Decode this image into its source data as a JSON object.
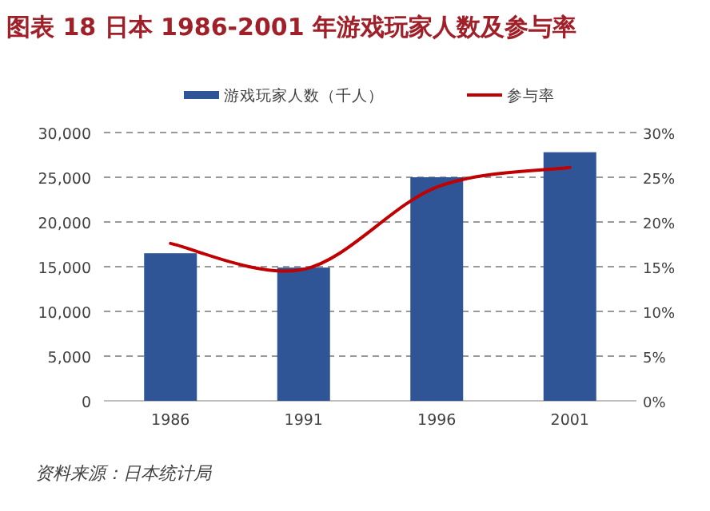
{
  "chart_data": {
    "type": "bar",
    "title": "图表 18 日本 1986-2001 年游戏玩家人数及参与率",
    "categories": [
      "1986",
      "1991",
      "1996",
      "2001"
    ],
    "series": [
      {
        "name": "游戏玩家人数（千人）",
        "color": "#2f5597",
        "values": [
          16500,
          14900,
          25000,
          27800
        ]
      },
      {
        "name": "参与率",
        "type": "line",
        "axis": "y2",
        "color": "#c00000",
        "values": [
          17.6,
          14.7,
          23.9,
          26.1
        ]
      }
    ],
    "ylim": [
      0,
      30000
    ],
    "yticks": [
      {
        "value": 0,
        "label": "0"
      },
      {
        "value": 5000,
        "label": "5,000"
      },
      {
        "value": 10000,
        "label": "10,000"
      },
      {
        "value": 15000,
        "label": "15,000"
      },
      {
        "value": 20000,
        "label": "20,000"
      },
      {
        "value": 25000,
        "label": "25,000"
      },
      {
        "value": 30000,
        "label": "30,000"
      }
    ],
    "y2lim": [
      0,
      30
    ],
    "y2ticks": [
      {
        "value": 0,
        "label": "0%"
      },
      {
        "value": 5,
        "label": "5%"
      },
      {
        "value": 10,
        "label": "10%"
      },
      {
        "value": 15,
        "label": "15%"
      },
      {
        "value": 20,
        "label": "20%"
      },
      {
        "value": 25,
        "label": "25%"
      },
      {
        "value": 30,
        "label": "30%"
      }
    ],
    "grid": "y",
    "legend": "top",
    "marker": "none",
    "line_style": "solid",
    "annotations": [
      "资料来源：日本统计局"
    ]
  }
}
